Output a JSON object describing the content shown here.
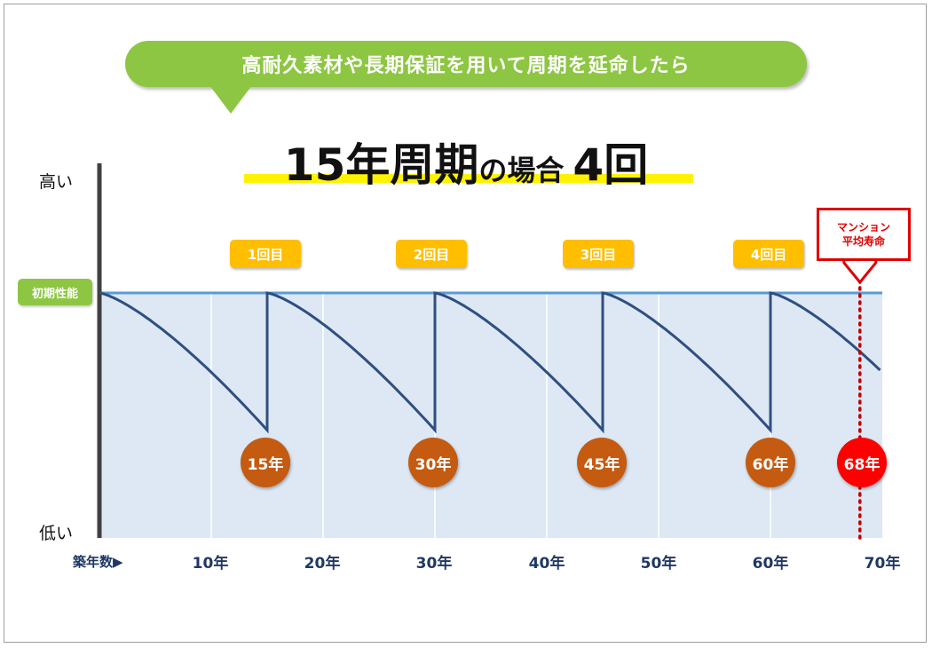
{
  "header": {
    "bubble_text": "高耐久素材や長期保証を用いて周期を延命したら",
    "headline_part1": "15年周期",
    "headline_part2": "の場合",
    "headline_part3": "4回"
  },
  "axis": {
    "y_high": "高い",
    "y_low": "低い",
    "initial_label": "初期性能",
    "x_title": "築年数▶",
    "x_ticks": [
      "10年",
      "20年",
      "30年",
      "40年",
      "50年",
      "60年",
      "70年"
    ]
  },
  "counts": [
    "1回目",
    "2回目",
    "3回目",
    "4回目"
  ],
  "year_markers": [
    "15年",
    "30年",
    "45年",
    "60年",
    "68年"
  ],
  "callout": {
    "line1": "マンション",
    "line2": "平均寿命"
  },
  "colors": {
    "accent_green": "#8dc642",
    "badge_yellow": "#ffbe00",
    "marker_brown": "#c55a11",
    "marker_red": "#ff0000",
    "line_navy": "#2f4f80",
    "area_fill": "#dde8f4",
    "highlight_yellow": "#fff200"
  },
  "chart_data": {
    "type": "line",
    "x_unit": "年",
    "xlim": [
      0,
      70
    ],
    "ylim": [
      0,
      1
    ],
    "x_ticks": [
      10,
      20,
      30,
      40,
      50,
      60,
      70
    ],
    "cycle_years": 15,
    "maintenance_years": [
      15,
      30,
      45,
      60
    ],
    "performance_min": 0.44,
    "average_lifespan_year": 68,
    "grid": true
  }
}
